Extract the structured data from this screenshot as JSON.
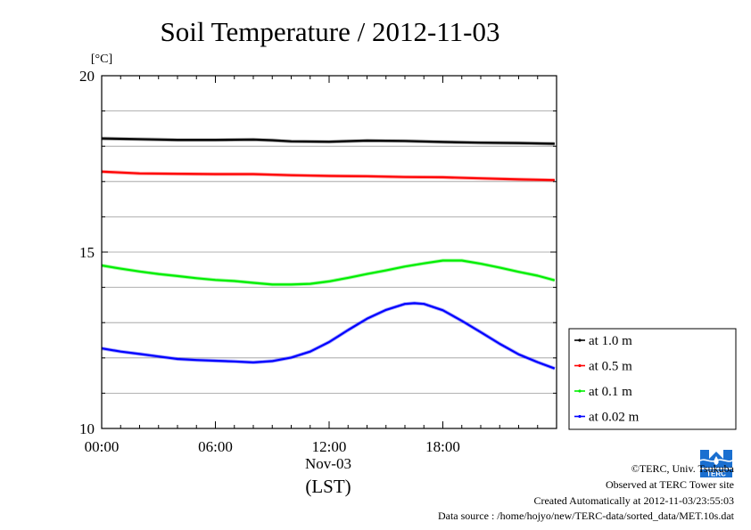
{
  "colors": {
    "at_1_0": "#000000",
    "at_0_5": "#ff0000",
    "at_0_1": "#00ee00",
    "at_0_02": "#0000ff",
    "logo": "#1a6fd0"
  },
  "chart_data": {
    "type": "line",
    "title": "Soil Temperature / 2012-11-03",
    "ylabel": "[°C]",
    "ylim": [
      10,
      20
    ],
    "y_ticks": [
      "10",
      "15",
      "20"
    ],
    "xlim": [
      0,
      24
    ],
    "x_ticks": [
      {
        "x": 0,
        "label": "00:00"
      },
      {
        "x": 6,
        "label": "06:00"
      },
      {
        "x": 12,
        "label": "12:00"
      },
      {
        "x": 18,
        "label": "18:00"
      }
    ],
    "date_label": "Nov-03",
    "xlabel": "(LST)",
    "grid": "horizontal",
    "legend": "right",
    "series": [
      {
        "name": "at 1.0 m",
        "color_key": "at_1_0",
        "x": [
          0,
          2,
          4,
          6,
          8,
          9,
          10,
          12,
          14,
          16,
          18,
          20,
          22,
          23.9
        ],
        "y": [
          18.22,
          18.2,
          18.18,
          18.18,
          18.19,
          18.17,
          18.14,
          18.13,
          18.16,
          18.15,
          18.12,
          18.1,
          18.09,
          18.07
        ]
      },
      {
        "name": "at 0.5 m",
        "color_key": "at_0_5",
        "x": [
          0,
          2,
          4,
          6,
          8,
          10,
          12,
          14,
          16,
          18,
          20,
          22,
          23.9
        ],
        "y": [
          17.28,
          17.23,
          17.22,
          17.21,
          17.21,
          17.18,
          17.16,
          17.15,
          17.13,
          17.12,
          17.09,
          17.06,
          17.04
        ]
      },
      {
        "name": "at 0.1 m",
        "color_key": "at_0_1",
        "x": [
          0,
          1,
          2,
          3,
          4,
          5,
          6,
          7,
          8,
          9,
          10,
          11,
          12,
          13,
          14,
          15,
          16,
          17,
          18,
          19,
          20,
          21,
          22,
          23,
          23.9
        ],
        "y": [
          14.62,
          14.53,
          14.45,
          14.38,
          14.32,
          14.26,
          14.21,
          14.18,
          14.13,
          14.08,
          14.08,
          14.1,
          14.17,
          14.27,
          14.38,
          14.48,
          14.59,
          14.68,
          14.76,
          14.76,
          14.67,
          14.56,
          14.44,
          14.33,
          14.2
        ]
      },
      {
        "name": "at 0.02 m",
        "color_key": "at_0_02",
        "x": [
          0,
          1,
          2,
          3,
          4,
          5,
          6,
          7,
          8,
          9,
          10,
          11,
          12,
          13,
          14,
          15,
          16,
          16.5,
          17,
          18,
          19,
          20,
          21,
          22,
          23,
          23.9
        ],
        "y": [
          12.27,
          12.18,
          12.11,
          12.04,
          11.97,
          11.94,
          11.92,
          11.9,
          11.87,
          11.91,
          12.01,
          12.18,
          12.45,
          12.79,
          13.11,
          13.36,
          13.53,
          13.55,
          13.53,
          13.35,
          13.05,
          12.73,
          12.4,
          12.1,
          11.88,
          11.7
        ]
      }
    ]
  },
  "footer": {
    "copyright": "©TERC, Univ. Tsukuba",
    "observed": "Observed at TERC Tower site",
    "created": "Created Automatically at 2012-11-03/23:55:03",
    "source": "Data source : /home/hojyo/new/TERC-data/sorted_data/MET.10s.dat"
  },
  "logo": {
    "name": "TERC logo",
    "text": "TERC"
  }
}
